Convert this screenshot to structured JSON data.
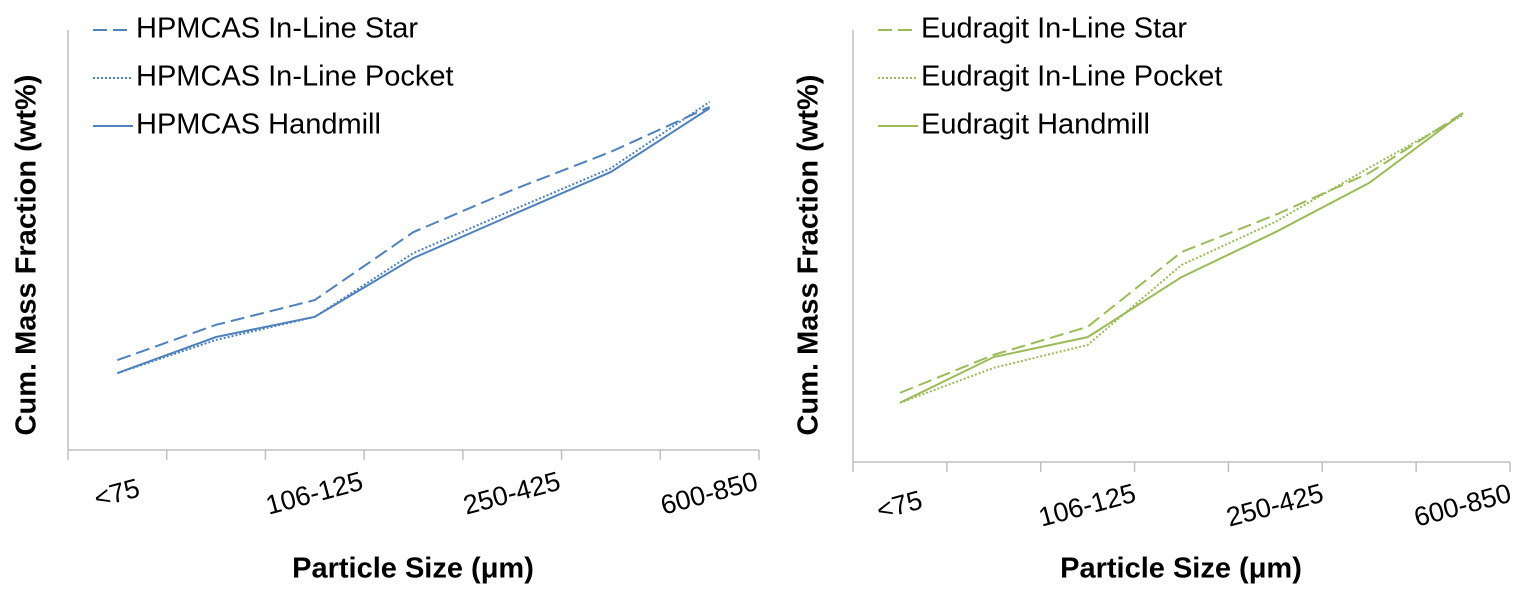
{
  "chart_data": [
    {
      "type": "line",
      "x_label": "Particle Size (μm)",
      "y_label": "Cum. Mass Fraction (wt%)",
      "categories": [
        "<75",
        null,
        "106-125",
        null,
        "250-425",
        null,
        "600-850"
      ],
      "ylim": [
        0,
        100
      ],
      "grid": false,
      "legend": "upper left",
      "series": [
        {
          "name": "HPMCAS In-Line Star",
          "color": "#4f81bd",
          "dash": "dashed",
          "values": [
            21.4,
            29.8,
            35.7,
            51.9,
            61.9,
            71,
            81.7
          ]
        },
        {
          "name": "HPMCAS In-Line Pocket",
          "color": "#4f81bd",
          "dash": "dotted",
          "values": [
            18.3,
            26.2,
            31.7,
            46.9,
            57.1,
            67.1,
            82.9
          ]
        },
        {
          "name": "HPMCAS Handmill",
          "color": "#4f81bd",
          "dash": "solid",
          "values": [
            18.3,
            26.9,
            31.7,
            45.7,
            56,
            66.2,
            81.4
          ]
        }
      ]
    },
    {
      "type": "line",
      "x_label": "Particle Size (μm)",
      "y_label": "Cum. Mass Fraction (wt%)",
      "categories": [
        "<75",
        null,
        "106-125",
        null,
        "250-425",
        null,
        "600-850"
      ],
      "ylim": [
        0,
        100
      ],
      "grid": false,
      "legend": "upper left",
      "series": [
        {
          "name": "Eudragit In-Line Star",
          "color": "#9bbb59",
          "dash": "dashed",
          "values": [
            16,
            24.8,
            31.3,
            48.6,
            57.2,
            66.9,
            80.8
          ]
        },
        {
          "name": "Eudragit In-Line Pocket",
          "color": "#9bbb59",
          "dash": "dotted",
          "values": [
            13.7,
            21.8,
            27.1,
            45.6,
            55.6,
            68.1,
            80.3
          ]
        },
        {
          "name": "Eudragit Handmill",
          "color": "#9bbb59",
          "dash": "solid",
          "values": [
            13.7,
            24.3,
            28.9,
            42.8,
            53.2,
            64.6,
            80.8
          ]
        }
      ]
    }
  ]
}
